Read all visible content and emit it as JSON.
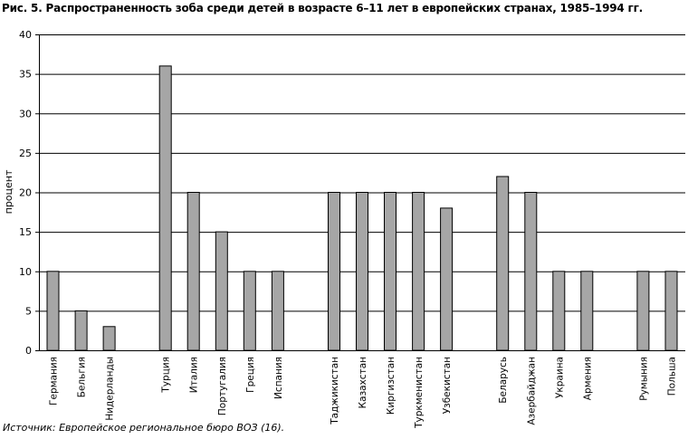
{
  "title": "Рис. 5. Распространенность зоба среди детей в возрасте 6–11 лет в европейских странах, 1985–1994 гг.",
  "source": "Источник: Европейское региональное бюро ВОЗ (16).",
  "chart_data": {
    "type": "bar",
    "ylabel": "процент",
    "xlabel": "",
    "ylim": [
      0,
      40
    ],
    "yticks": [
      0,
      5,
      10,
      15,
      20,
      25,
      30,
      35,
      40
    ],
    "grid": true,
    "bar_color": "#a6a6a6",
    "categories": [
      "Германия",
      "Бельгия",
      "Нидерланды",
      "",
      "Турция",
      "Италия",
      "Португалия",
      "Греция",
      "Испания",
      "",
      "Таджикистан",
      "Казахстан",
      "Киргизстан",
      "Туркменистан",
      "Узбекистан",
      "",
      "Беларусь",
      "Азербайджан",
      "Украина",
      "Армения",
      "",
      "Румыния",
      "Польша"
    ],
    "values": [
      10,
      5,
      3,
      null,
      36,
      20,
      15,
      10,
      10,
      null,
      20,
      20,
      20,
      20,
      18,
      null,
      22,
      20,
      10,
      10,
      null,
      10,
      10
    ]
  }
}
